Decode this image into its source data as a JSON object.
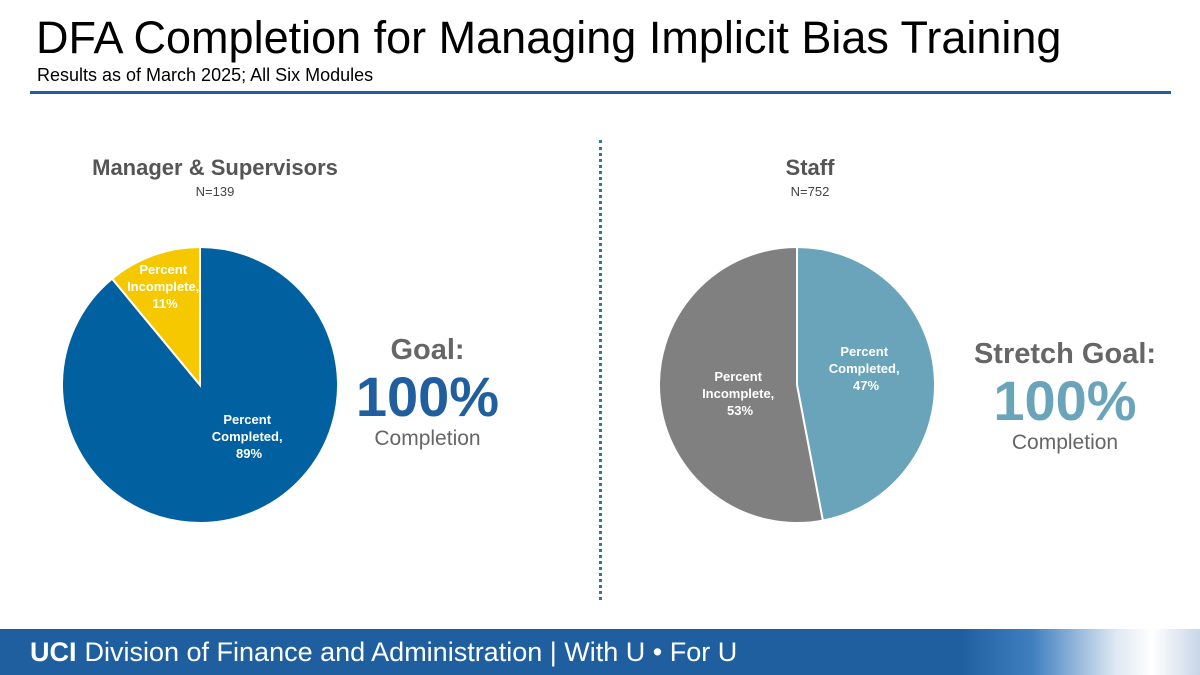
{
  "slide": {
    "title": "DFA Completion for Managing Implicit Bias Training",
    "subtitle": "Results as of March 2025; All Six Modules"
  },
  "footer": {
    "logo": "UCI",
    "text": "Division of Finance and Administration | With U • For U"
  },
  "colors": {
    "managers_completed": "#0060a0",
    "managers_incomplete": "#f5c800",
    "staff_completed": "#6aa4ba",
    "staff_incomplete": "#808080",
    "goal_value_left": "#1f5fa0",
    "goal_value_right": "#6aa4ba"
  },
  "chart_data": [
    {
      "type": "pie",
      "title": "Manager & Supervisors",
      "subtitle": "N=139",
      "slices": [
        {
          "name": "Percent Completed",
          "value": 89,
          "label_line1": "Percent",
          "label_line2": "Completed,",
          "label_line3": "89%"
        },
        {
          "name": "Percent Incomplete",
          "value": 11,
          "label_line1": "Percent",
          "label_line2": "Incomplete,",
          "label_line3": "11%"
        }
      ],
      "goal_label": "Goal:",
      "goal_value": "100%",
      "goal_sub": "Completion"
    },
    {
      "type": "pie",
      "title": "Staff",
      "subtitle": "N=752",
      "slices": [
        {
          "name": "Percent Completed",
          "value": 47,
          "label_line1": "Percent",
          "label_line2": "Completed,",
          "label_line3": "47%"
        },
        {
          "name": "Percent Incomplete",
          "value": 53,
          "label_line1": "Percent",
          "label_line2": "Incomplete,",
          "label_line3": "53%"
        }
      ],
      "goal_label": "Stretch Goal:",
      "goal_value": "100%",
      "goal_sub": "Completion"
    }
  ]
}
